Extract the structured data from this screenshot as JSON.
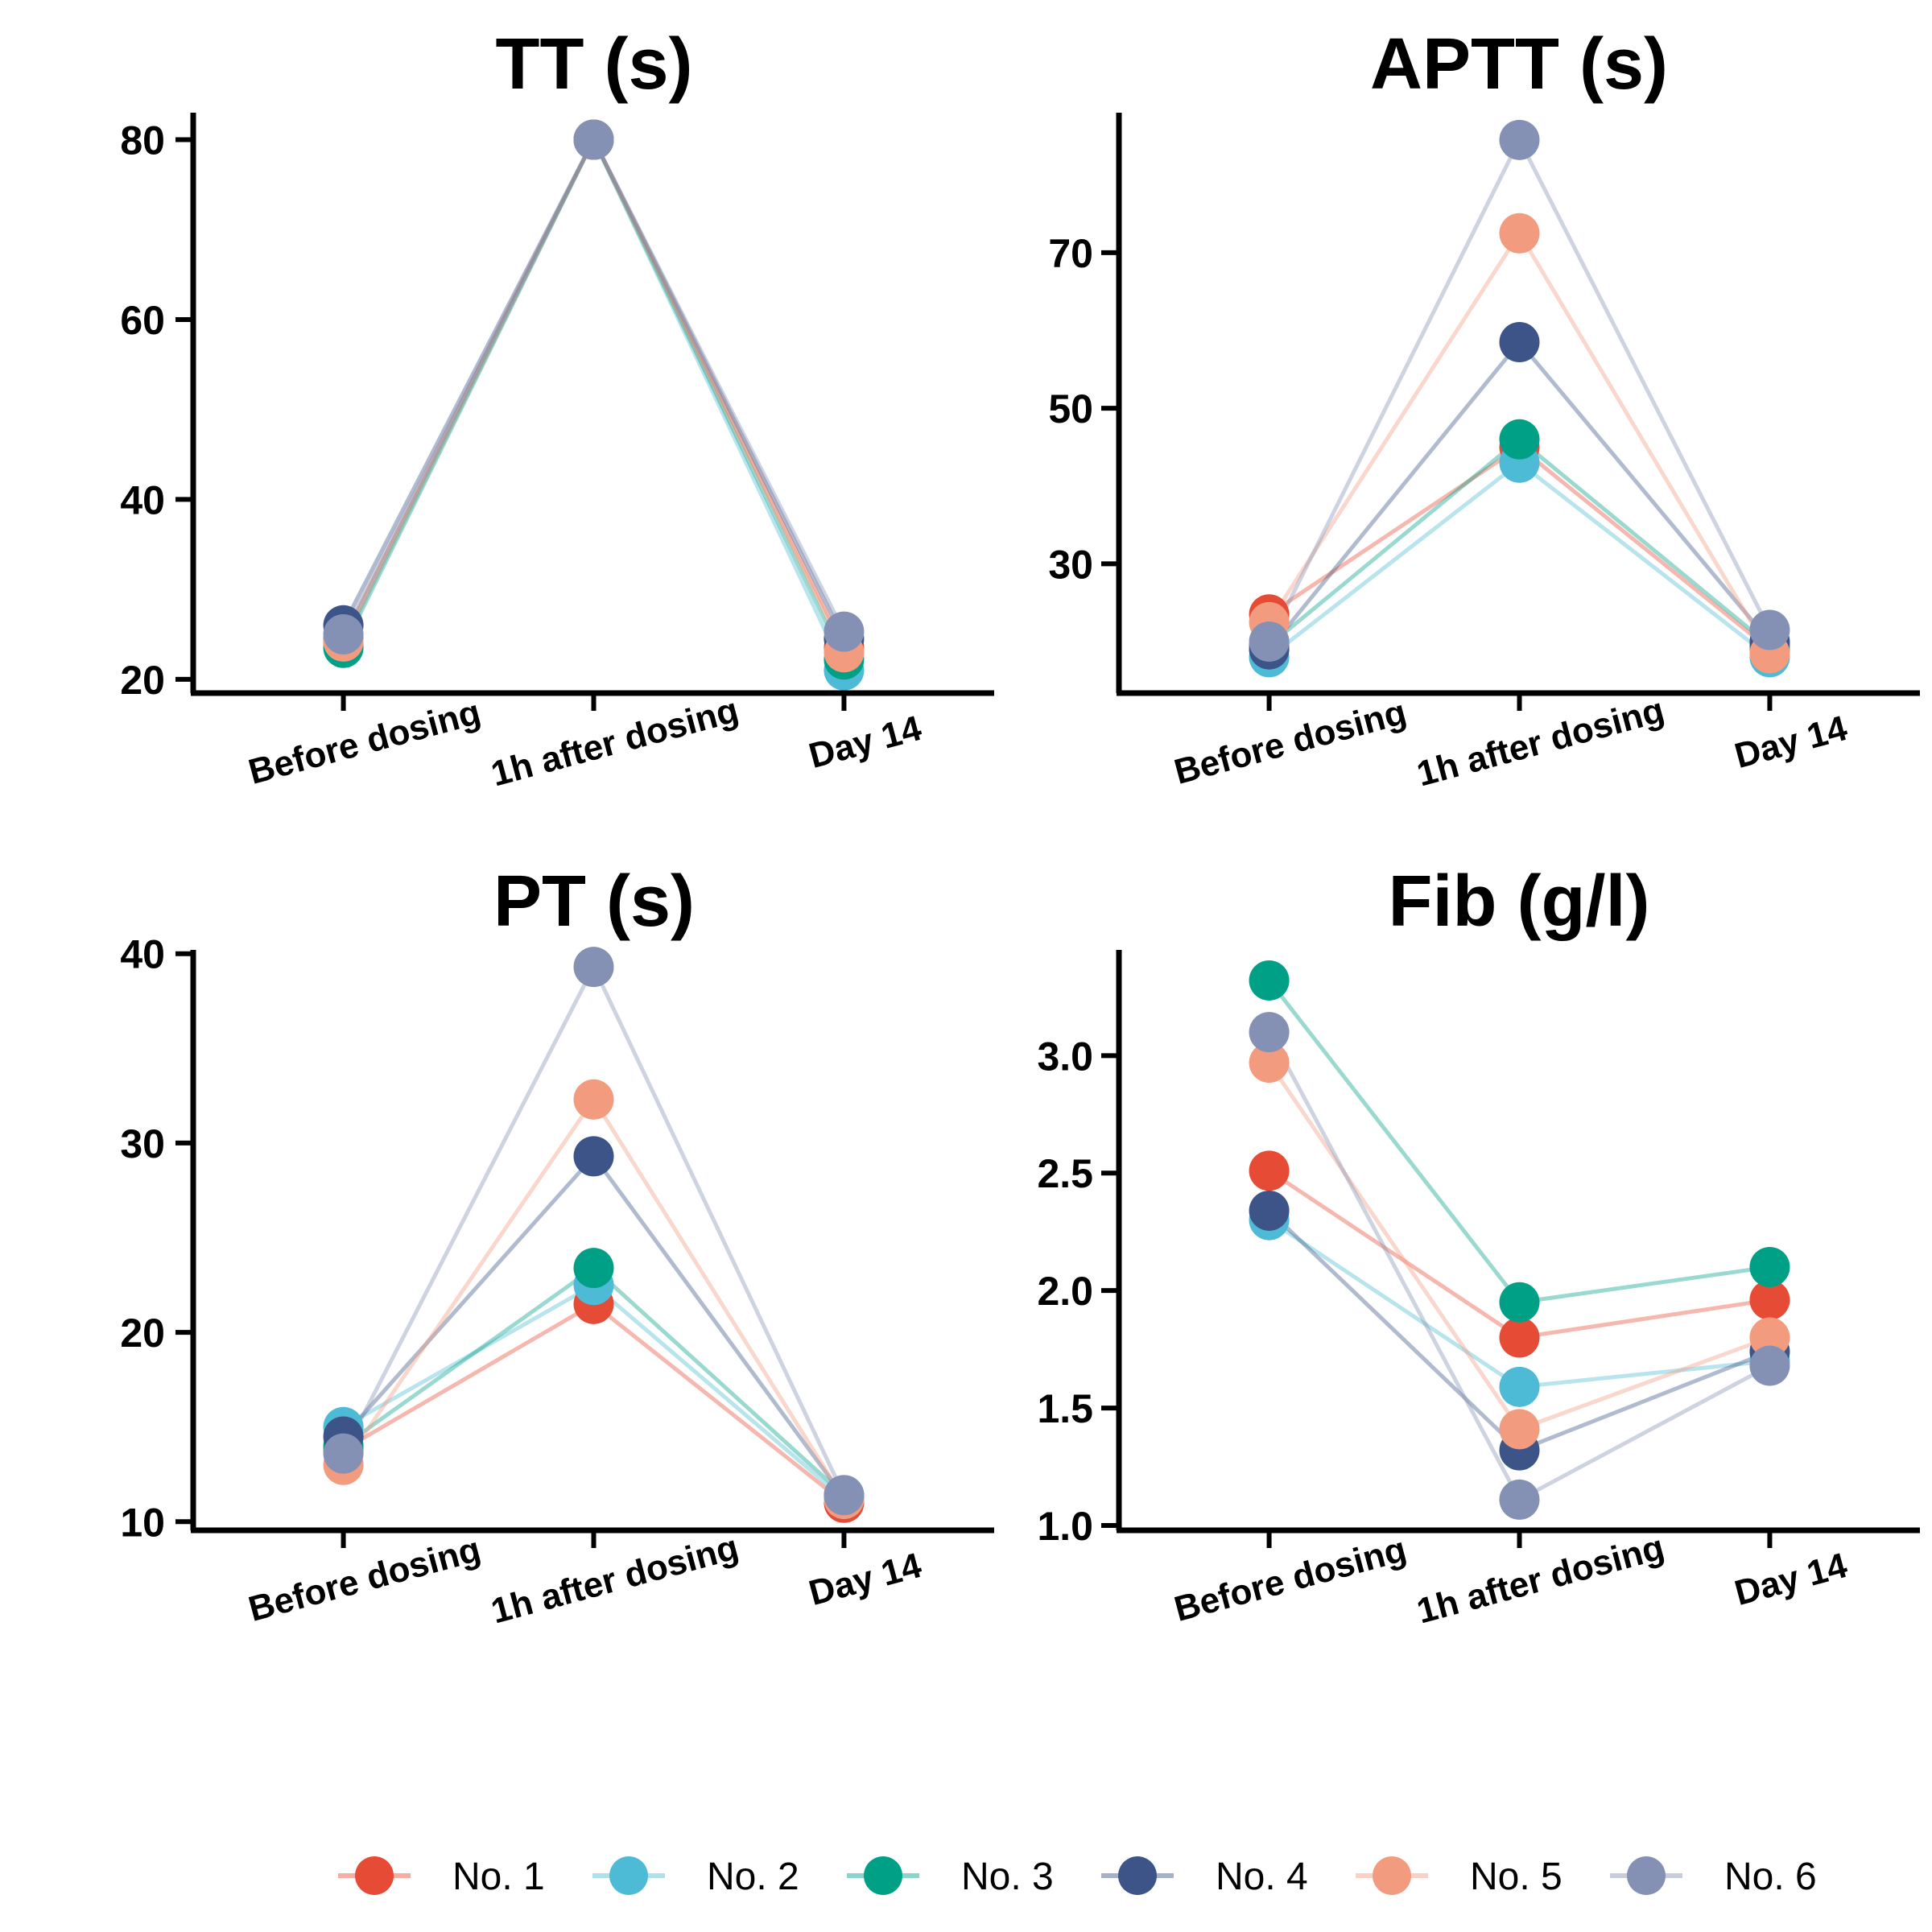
{
  "chart_data": [
    {
      "type": "line",
      "title": "TT (s)",
      "categories": [
        "Before dosing",
        "1h after dosing",
        "Day 14"
      ],
      "ylim": [
        19,
        83
      ],
      "yticks": [
        20,
        40,
        60,
        80
      ],
      "series": [
        {
          "name": "No. 1",
          "values": [
            24.5,
            80,
            23.5
          ]
        },
        {
          "name": "No. 2",
          "values": [
            24.0,
            80,
            21.0
          ]
        },
        {
          "name": "No. 3",
          "values": [
            23.5,
            80,
            22.2
          ]
        },
        {
          "name": "No. 4",
          "values": [
            26.0,
            80,
            24.5
          ]
        },
        {
          "name": "No. 5",
          "values": [
            24.2,
            80,
            23.0
          ]
        },
        {
          "name": "No. 6",
          "values": [
            25.0,
            80,
            25.3
          ]
        }
      ]
    },
    {
      "type": "line",
      "title": "APTT (s)",
      "categories": [
        "Before dosing",
        "1h after dosing",
        "Day 14"
      ],
      "ylim": [
        14,
        88
      ],
      "yticks": [
        30,
        50,
        70
      ],
      "series": [
        {
          "name": "No. 1",
          "values": [
            23.5,
            45.0,
            19.0
          ]
        },
        {
          "name": "No. 2",
          "values": [
            18.0,
            43.0,
            18.0
          ]
        },
        {
          "name": "No. 3",
          "values": [
            19.5,
            46.0,
            19.5
          ]
        },
        {
          "name": "No. 4",
          "values": [
            19.0,
            58.5,
            20.0
          ]
        },
        {
          "name": "No. 5",
          "values": [
            22.5,
            72.5,
            18.5
          ]
        },
        {
          "name": "No. 6",
          "values": [
            20.0,
            84.5,
            21.5
          ]
        }
      ]
    },
    {
      "type": "line",
      "title": "PT (s)",
      "categories": [
        "Before dosing",
        "1h after dosing",
        "Day 14"
      ],
      "ylim": [
        9.8,
        40.2
      ],
      "yticks": [
        10,
        20,
        30,
        40
      ],
      "series": [
        {
          "name": "No. 1",
          "values": [
            13.8,
            21.5,
            11.0
          ]
        },
        {
          "name": "No. 2",
          "values": [
            15.0,
            22.5,
            11.2
          ]
        },
        {
          "name": "No. 3",
          "values": [
            14.0,
            23.4,
            11.4
          ]
        },
        {
          "name": "No. 4",
          "values": [
            14.5,
            29.3,
            11.3
          ]
        },
        {
          "name": "No. 5",
          "values": [
            13.0,
            32.3,
            11.2
          ]
        },
        {
          "name": "No. 6",
          "values": [
            13.6,
            39.3,
            11.4
          ]
        }
      ]
    },
    {
      "type": "line",
      "title": "Fib (g/l)",
      "categories": [
        "Before dosing",
        "1h after dosing",
        "Day 14"
      ],
      "ylim": [
        1.0,
        3.45
      ],
      "yticks": [
        1.0,
        1.5,
        2.0,
        2.5,
        3.0
      ],
      "series": [
        {
          "name": "No. 1",
          "values": [
            2.51,
            1.8,
            1.96
          ]
        },
        {
          "name": "No. 2",
          "values": [
            2.3,
            1.59,
            1.7
          ]
        },
        {
          "name": "No. 3",
          "values": [
            3.32,
            1.95,
            2.1
          ]
        },
        {
          "name": "No. 4",
          "values": [
            2.34,
            1.32,
            1.74
          ]
        },
        {
          "name": "No. 5",
          "values": [
            2.97,
            1.41,
            1.8
          ]
        },
        {
          "name": "No. 6",
          "values": [
            3.1,
            1.11,
            1.68
          ]
        }
      ]
    }
  ],
  "legend": {
    "placement": "bottom",
    "items": [
      {
        "name": "No. 1",
        "color": "#E64B35"
      },
      {
        "name": "No. 2",
        "color": "#4DBBD5"
      },
      {
        "name": "No. 3",
        "color": "#00A087"
      },
      {
        "name": "No. 4",
        "color": "#3C5488"
      },
      {
        "name": "No. 5",
        "color": "#F39B7F"
      },
      {
        "name": "No. 6",
        "color": "#8491B4"
      }
    ]
  }
}
